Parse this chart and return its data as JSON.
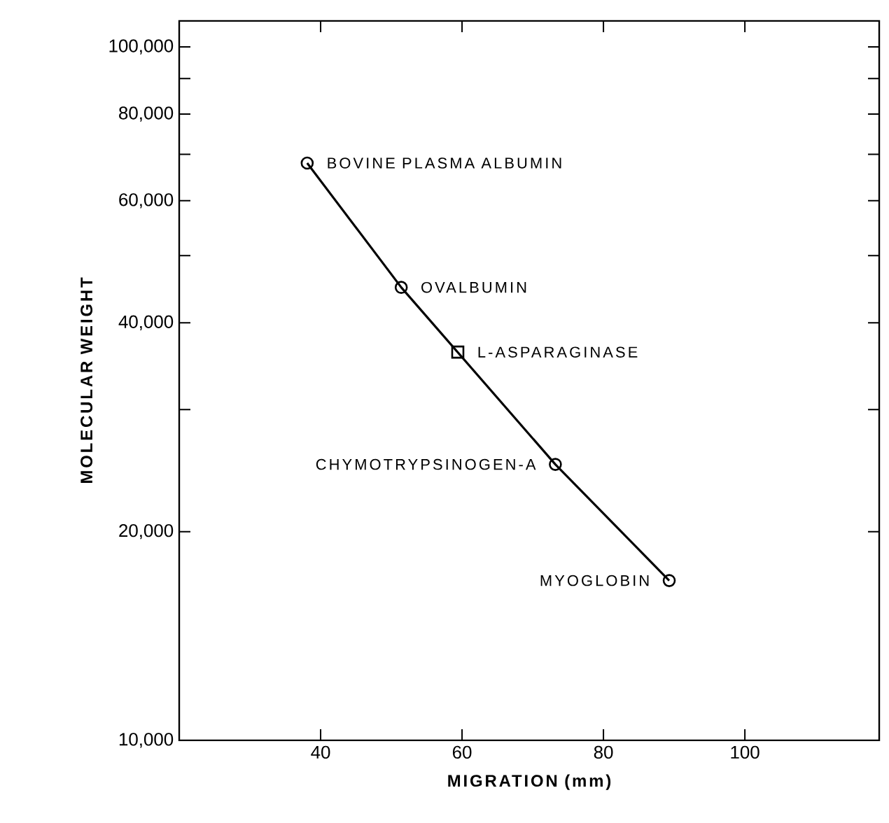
{
  "chart_data": {
    "type": "line",
    "xlabel": "MIGRATION (mm)",
    "ylabel": "MOLECULAR WEIGHT",
    "log": "y",
    "marker": "circle",
    "xlim": [
      20,
      119
    ],
    "ylim": [
      10000,
      109000
    ],
    "xticks": [
      40,
      60,
      80,
      100
    ],
    "yticks": [
      {
        "value": 10000,
        "label": "10,000"
      },
      {
        "value": 20000,
        "label": "20,000"
      },
      {
        "value": 30000,
        "label": null
      },
      {
        "value": 40000,
        "label": "40,000"
      },
      {
        "value": 50000,
        "label": null
      },
      {
        "value": 60000,
        "label": "60,000"
      },
      {
        "value": 70000,
        "label": null
      },
      {
        "value": 80000,
        "label": "80,000"
      },
      {
        "value": 90000,
        "label": null
      },
      {
        "value": 100000,
        "label": "100,000"
      }
    ],
    "series": [
      {
        "color": "#000000",
        "x": [
          38.1,
          51.4,
          73.2,
          89.3
        ],
        "values": [
          68000,
          45000,
          25000,
          17000
        ]
      },
      {
        "type": "scatter",
        "marker": "square",
        "color": "#000000",
        "x": [
          59.4
        ],
        "values": [
          36300
        ]
      }
    ],
    "annotations": [
      {
        "text": "BOVINE PLASMA ALBUMIN",
        "x": 38.1,
        "y": 68000
      },
      {
        "text": "OVALBUMIN",
        "x": 51.4,
        "y": 45000
      },
      {
        "text": "L-ASPARAGINASE",
        "x": 59.4,
        "y": 36300
      },
      {
        "text": "CHYMOTRYPSINOGEN-A",
        "x": 73.2,
        "y": 25000
      },
      {
        "text": "MYOGLOBIN",
        "x": 89.3,
        "y": 17000
      }
    ]
  }
}
